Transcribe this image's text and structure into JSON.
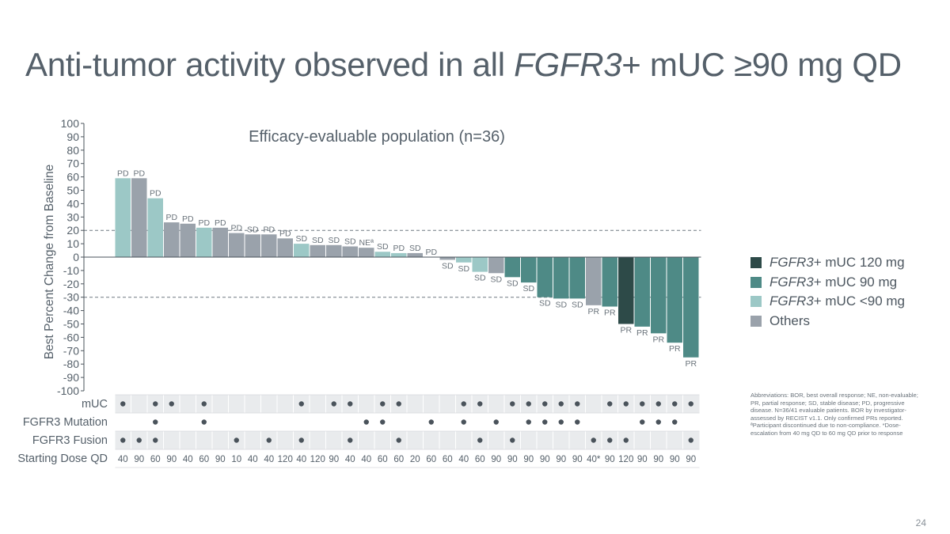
{
  "slide": {
    "title_prefix": "Anti-tumor activity observed in all ",
    "title_italic": "FGFR3",
    "title_suffix": "+ mUC ≥90 mg QD",
    "page_number": "24",
    "footnote": "Abbreviations: BOR, best overall response; NE, non-evaluable; PR, partial response; SD, stable disease; PD, progressive disease. N=36/41 evaluable patients. BOR by investigator-assessed by RECIST v1.1. Only confirmed PRs reported. ªParticipant discontinued due to non-compliance. *Dose-escalation from 40 mg QD to 60 mg QD prior to response"
  },
  "legend": [
    {
      "italic": "FGFR3",
      "suffix": "+ mUC 120 mg",
      "color": "#2d4a48"
    },
    {
      "italic": "FGFR3",
      "suffix": "+ mUC 90 mg",
      "color": "#4e8a86"
    },
    {
      "italic": "FGFR3",
      "suffix": "+ mUC <90 mg",
      "color": "#9cc8c6"
    },
    {
      "italic": "",
      "suffix": "Others",
      "color": "#9aa2ab"
    }
  ],
  "chart_data": {
    "type": "bar",
    "title": "Efficacy-evaluable population (n=36)",
    "ylabel": "Best Percent Change from Baseline",
    "ylim": [
      -100,
      100
    ],
    "yticks": [
      "100",
      "90",
      "80",
      "70",
      "60",
      "50",
      "40",
      "30",
      "20",
      "10",
      "0",
      "-10",
      "-20",
      "-30",
      "-40",
      "-50",
      "-60",
      "-70",
      "-80",
      "-90",
      "-100"
    ],
    "reference_lines": [
      20,
      -30
    ],
    "group_colors": {
      "120": "#2d4a48",
      "90": "#4e8a86",
      "lt90": "#9cc8c6",
      "other": "#9aa2ab"
    },
    "bars": [
      {
        "value": 59,
        "label": "PD",
        "group": "lt90"
      },
      {
        "value": 59,
        "label": "PD",
        "group": "other"
      },
      {
        "value": 44,
        "label": "PD",
        "group": "lt90"
      },
      {
        "value": 26,
        "label": "PD",
        "group": "other"
      },
      {
        "value": 25,
        "label": "PD",
        "group": "other"
      },
      {
        "value": 22,
        "label": "PD",
        "group": "lt90"
      },
      {
        "value": 22,
        "label": "PD",
        "group": "other"
      },
      {
        "value": 18,
        "label": "PD",
        "group": "other"
      },
      {
        "value": 17,
        "label": "SD",
        "group": "other"
      },
      {
        "value": 17,
        "label": "PD",
        "group": "other"
      },
      {
        "value": 14,
        "label": "PD",
        "group": "other"
      },
      {
        "value": 10,
        "label": "SD",
        "group": "lt90"
      },
      {
        "value": 9,
        "label": "SD",
        "group": "other"
      },
      {
        "value": 9,
        "label": "SD",
        "group": "other"
      },
      {
        "value": 8,
        "label": "SD",
        "group": "other"
      },
      {
        "value": 7,
        "label": "NEª",
        "group": "other"
      },
      {
        "value": 4,
        "label": "SD",
        "group": "lt90"
      },
      {
        "value": 3,
        "label": "PD",
        "group": "lt90"
      },
      {
        "value": 3,
        "label": "SD",
        "group": "other"
      },
      {
        "value": 0,
        "label": "PD",
        "group": "other"
      },
      {
        "value": -2,
        "label": "SD",
        "group": "other"
      },
      {
        "value": -4,
        "label": "SD",
        "group": "lt90"
      },
      {
        "value": -11,
        "label": "SD",
        "group": "lt90"
      },
      {
        "value": -12,
        "label": "SD",
        "group": "other"
      },
      {
        "value": -15,
        "label": "SD",
        "group": "90"
      },
      {
        "value": -19,
        "label": "SD",
        "group": "90"
      },
      {
        "value": -30,
        "label": "SD",
        "group": "90"
      },
      {
        "value": -31,
        "label": "SD",
        "group": "90"
      },
      {
        "value": -31,
        "label": "SD",
        "group": "90"
      },
      {
        "value": -36,
        "label": "PR",
        "group": "other"
      },
      {
        "value": -37,
        "label": "PR",
        "group": "90"
      },
      {
        "value": -50,
        "label": "PR",
        "group": "120"
      },
      {
        "value": -52,
        "label": "PR",
        "group": "90"
      },
      {
        "value": -57,
        "label": "PR",
        "group": "90"
      },
      {
        "value": -64,
        "label": "PR",
        "group": "90"
      },
      {
        "value": -75,
        "label": "PR",
        "group": "90"
      }
    ],
    "table": {
      "rows": [
        {
          "label": "mUC",
          "marks": [
            1,
            0,
            1,
            1,
            0,
            1,
            0,
            0,
            0,
            0,
            0,
            1,
            0,
            1,
            1,
            0,
            1,
            1,
            0,
            0,
            0,
            1,
            1,
            0,
            1,
            1,
            1,
            1,
            1,
            0,
            1,
            1,
            1,
            1,
            1,
            1
          ]
        },
        {
          "label": "FGFR3 Mutation",
          "marks": [
            0,
            0,
            1,
            0,
            0,
            1,
            0,
            0,
            0,
            0,
            0,
            0,
            0,
            0,
            0,
            1,
            1,
            0,
            0,
            1,
            0,
            1,
            0,
            1,
            0,
            1,
            1,
            1,
            1,
            0,
            0,
            0,
            1,
            1,
            1,
            0
          ]
        },
        {
          "label": "FGFR3 Fusion",
          "marks": [
            1,
            1,
            1,
            0,
            0,
            0,
            0,
            1,
            0,
            1,
            0,
            1,
            0,
            0,
            1,
            0,
            0,
            1,
            0,
            0,
            0,
            0,
            1,
            0,
            1,
            0,
            0,
            0,
            0,
            1,
            1,
            1,
            0,
            0,
            0,
            1
          ]
        },
        {
          "label": "Starting Dose QD",
          "values": [
            "40",
            "90",
            "60",
            "90",
            "40",
            "60",
            "90",
            "10",
            "40",
            "40",
            "120",
            "40",
            "120",
            "90",
            "40",
            "40",
            "60",
            "60",
            "20",
            "60",
            "60",
            "40",
            "60",
            "90",
            "90",
            "90",
            "90",
            "90",
            "90",
            "40*",
            "90",
            "120",
            "90",
            "90",
            "90",
            "90"
          ]
        }
      ]
    }
  }
}
